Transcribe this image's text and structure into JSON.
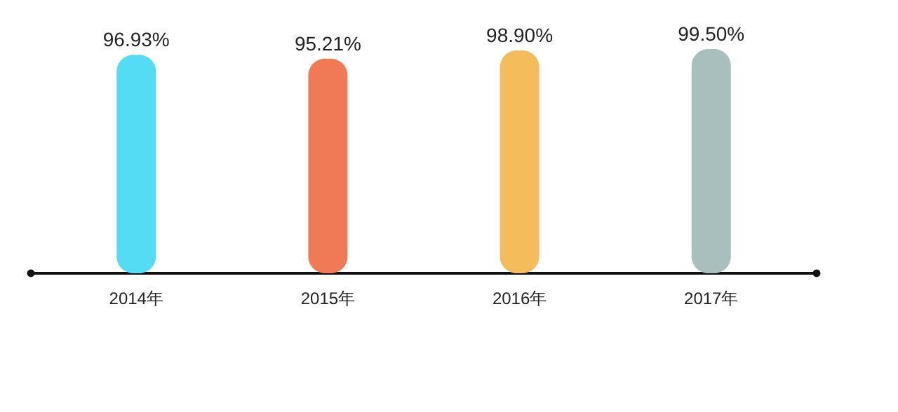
{
  "chart_data": {
    "type": "bar",
    "categories": [
      "2014年",
      "2015年",
      "2016年",
      "2017年"
    ],
    "tick_labels": "x",
    "series": [
      {
        "colors": [
          "#55dcf5",
          "#f07a55",
          "#f4bc5a",
          "#a9bfbe"
        ],
        "values": [
          96.93,
          95.21,
          98.9,
          99.5
        ],
        "value_labels": [
          "96.93%",
          "95.21%",
          "98.90%",
          "99.50%"
        ]
      }
    ]
  }
}
